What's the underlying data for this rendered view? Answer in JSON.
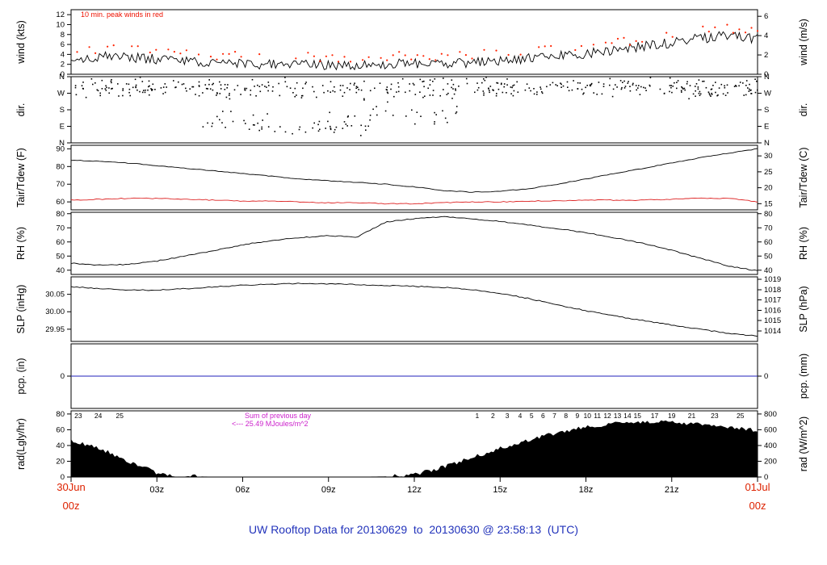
{
  "title": "UW Rooftop Data for 20130629  to  20130630 @ 23:58:13  (UTC)",
  "colors": {
    "accent_red": "#ee1100",
    "date_red": "#dd2200",
    "title_blue": "#2233bb",
    "magenta": "#cc22cc",
    "purple": "#aa22cc",
    "pcp_blue": "#2222bb"
  },
  "annotations": {
    "peak_note": "10 min. peak winds in red",
    "rad_sum_line1": "Sum of previous day",
    "rad_sum_line2": "<--- 25.49 MJoules/m^2"
  },
  "x_axis": {
    "start_date": "30Jun",
    "start_hour": "00z",
    "end_date": "01Jul",
    "end_hour": "00z",
    "range_hours": [
      0,
      24
    ],
    "ticks": [
      {
        "label": "03z",
        "h": 3
      },
      {
        "label": "06z",
        "h": 6
      },
      {
        "label": "09z",
        "h": 9
      },
      {
        "label": "12z",
        "h": 12
      },
      {
        "label": "15z",
        "h": 15
      },
      {
        "label": "18z",
        "h": 18
      },
      {
        "label": "21z",
        "h": 21
      }
    ]
  },
  "chart_data": {
    "type": "line",
    "x_unit": "hours UTC from 30Jun 00z to 01Jul 00z",
    "panels": [
      {
        "id": "wind",
        "ylabel_left": "wind (kts)",
        "ylabel_right": "wind (m/s)",
        "top": 12,
        "height": 80,
        "ylim": [
          0,
          13
        ],
        "yticks_left": [
          {
            "label": "0",
            "at": 0
          },
          {
            "label": "2",
            "at": 2
          },
          {
            "label": "4",
            "at": 4
          },
          {
            "label": "6",
            "at": 6
          },
          {
            "label": "8",
            "at": 8
          },
          {
            "label": "10",
            "at": 10
          },
          {
            "label": "12",
            "at": 12
          }
        ],
        "yticks_right": [
          {
            "label": "0",
            "at": 0
          },
          {
            "label": "2",
            "at": 3.89
          },
          {
            "label": "4",
            "at": 7.78
          },
          {
            "label": "6",
            "at": 11.67
          }
        ],
        "series": [
          {
            "name": "wind-speed",
            "style": "line",
            "color": "#000000",
            "noise": 1.0,
            "samples": 340,
            "min": 0.2,
            "base": [
              3.2,
              3.6,
              3.4,
              3.0,
              2.6,
              2.3,
              2.1,
              1.9,
              2.1,
              1.9,
              1.8,
              2.0,
              2.2,
              2.1,
              2.4,
              2.8,
              3.2,
              3.6,
              4.2,
              4.8,
              5.6,
              6.4,
              7.2,
              7.8,
              7.2
            ]
          },
          {
            "name": "wind-peaks",
            "style": "dots",
            "color": "#ff2200",
            "noise": 0.9,
            "samples": 340,
            "step": 3,
            "prob": 0.6,
            "min": 0.5,
            "base": [
              4.7,
              5.1,
              4.9,
              4.5,
              4.1,
              3.8,
              3.6,
              3.4,
              3.6,
              3.4,
              3.3,
              3.5,
              3.7,
              3.6,
              3.9,
              4.3,
              4.7,
              5.1,
              5.7,
              6.3,
              7.1,
              7.9,
              8.7,
              9.3,
              8.7
            ]
          }
        ]
      },
      {
        "id": "dir",
        "ylabel_left": "dir.",
        "ylabel_right": "dir.",
        "top": 95,
        "height": 82,
        "ylim": [
          0,
          360
        ],
        "yticks_left": [
          {
            "label": "N",
            "at": 0
          },
          {
            "label": "E",
            "at": 90
          },
          {
            "label": "S",
            "at": 180
          },
          {
            "label": "W",
            "at": 270
          },
          {
            "label": "N",
            "at": 360
          }
        ],
        "yticks_right": [
          {
            "label": "N",
            "at": 0
          },
          {
            "label": "E",
            "at": 90
          },
          {
            "label": "S",
            "at": 180
          },
          {
            "label": "W",
            "at": 270
          },
          {
            "label": "N",
            "at": 360
          }
        ],
        "series": [
          {
            "name": "wind-direction",
            "style": "scatter",
            "color": "#000000",
            "size": 1.6,
            "wrap": 360,
            "clusters": [
              {
                "x": [
                  0,
                  24
                ],
                "center": 300,
                "spread": 38,
                "n": 430
              },
              {
                "x": [
                  4.5,
                  10.5
                ],
                "center": 105,
                "spread": 45,
                "n": 60
              },
              {
                "x": [
                  10,
                  13.5
                ],
                "center": 170,
                "spread": 55,
                "n": 25
              }
            ]
          }
        ]
      },
      {
        "id": "temp",
        "ylabel_left": "Tair/Tdew (F)",
        "ylabel_right": "Tair/Tdew (C)",
        "top": 180,
        "height": 80,
        "ylim": [
          55.5,
          92
        ],
        "yticks_left": [
          {
            "label": "60",
            "at": 60
          },
          {
            "label": "70",
            "at": 70
          },
          {
            "label": "80",
            "at": 80
          },
          {
            "label": "90",
            "at": 90
          }
        ],
        "yticks_right": [
          {
            "label": "15",
            "at": 59
          },
          {
            "label": "20",
            "at": 68
          },
          {
            "label": "25",
            "at": 77
          },
          {
            "label": "30",
            "at": 86
          }
        ],
        "series": [
          {
            "name": "air-temperature",
            "style": "line",
            "color": "#000000",
            "noise": 0.2,
            "samples": 220,
            "base": [
              83.5,
              83.0,
              82.0,
              80.5,
              79.0,
              77.5,
              76.0,
              74.5,
              73.0,
              72.0,
              71.0,
              70.0,
              68.5,
              66.5,
              65.5,
              66.0,
              67.5,
              70.0,
              73.0,
              76.0,
              79.0,
              82.0,
              85.0,
              87.5,
              90.0
            ]
          },
          {
            "name": "dew-point",
            "style": "line",
            "color": "#dd2222",
            "noise": 0.25,
            "samples": 220,
            "base": [
              61.0,
              61.5,
              62.0,
              62.0,
              61.5,
              61.0,
              60.5,
              60.5,
              60.0,
              59.5,
              59.5,
              59.0,
              59.0,
              59.5,
              60.0,
              60.0,
              60.5,
              60.5,
              61.0,
              61.0,
              61.0,
              61.5,
              62.0,
              62.0,
              60.0
            ]
          }
        ]
      },
      {
        "id": "rh",
        "ylabel_left": "RH (%)",
        "ylabel_right": "RH (%)",
        "top": 263,
        "height": 77,
        "ylim": [
          37,
          81
        ],
        "yticks_left": [
          {
            "label": "40",
            "at": 40
          },
          {
            "label": "50",
            "at": 50
          },
          {
            "label": "60",
            "at": 60
          },
          {
            "label": "70",
            "at": 70
          },
          {
            "label": "80",
            "at": 80
          }
        ],
        "yticks_right": [
          {
            "label": "40",
            "at": 40
          },
          {
            "label": "50",
            "at": 50
          },
          {
            "label": "60",
            "at": 60
          },
          {
            "label": "70",
            "at": 70
          },
          {
            "label": "80",
            "at": 80
          }
        ],
        "series": [
          {
            "name": "relative-humidity",
            "style": "line",
            "color": "#000000",
            "noise": 0.35,
            "samples": 240,
            "base": [
              45,
              43.5,
              44,
              46.5,
              50,
              54,
              58,
              61,
              63,
              64.5,
              63.5,
              74,
              76.5,
              78,
              76.5,
              74.5,
              72,
              69.5,
              66.5,
              63,
              59,
              54,
              48.5,
              43,
              39.5
            ]
          }
        ]
      },
      {
        "id": "slp",
        "ylabel_left": "SLP (inHg)",
        "ylabel_right": "SLP (hPa)",
        "top": 343,
        "height": 80,
        "ylim": [
          29.915,
          30.1
        ],
        "yticks_left": [
          {
            "label": "29.95",
            "at": 29.95
          },
          {
            "label": "30.00",
            "at": 30.0
          },
          {
            "label": "30.05",
            "at": 30.05
          }
        ],
        "yticks_right": [
          {
            "label": "1014",
            "at": 29.945
          },
          {
            "label": "1015",
            "at": 29.975
          },
          {
            "label": "1016",
            "at": 30.004
          },
          {
            "label": "1017",
            "at": 30.034
          },
          {
            "label": "1018",
            "at": 30.063
          },
          {
            "label": "1019",
            "at": 30.093
          }
        ],
        "series": [
          {
            "name": "sea-level-pressure",
            "style": "line",
            "color": "#000000",
            "noise": 0.0015,
            "samples": 240,
            "base": [
              30.072,
              30.066,
              30.062,
              30.062,
              30.066,
              30.071,
              30.076,
              30.079,
              30.081,
              30.08,
              30.078,
              30.075,
              30.073,
              30.07,
              30.064,
              30.053,
              30.038,
              30.02,
              30.003,
              29.988,
              29.975,
              29.962,
              29.95,
              29.938,
              29.93
            ]
          }
        ]
      },
      {
        "id": "pcp",
        "ylabel_left": "pcp. (in)",
        "ylabel_right": "pcp. (mm)",
        "top": 426,
        "height": 80,
        "ylim": [
          -1,
          1
        ],
        "yticks_left": [
          {
            "label": "0",
            "at": 0
          }
        ],
        "yticks_right": [
          {
            "label": "0",
            "at": 0
          }
        ],
        "series": [
          {
            "name": "precipitation",
            "style": "line",
            "color": "#2222bb",
            "noise": 0,
            "samples": 2,
            "base": [
              0,
              0,
              0,
              0,
              0,
              0,
              0,
              0,
              0,
              0,
              0,
              0,
              0,
              0,
              0,
              0,
              0,
              0,
              0,
              0,
              0,
              0,
              0,
              0,
              0
            ]
          }
        ]
      },
      {
        "id": "rad",
        "ylabel_left": "rad(Lgly/hr)",
        "ylabel_right": "rad (W/m^2)",
        "top": 509,
        "height": 82,
        "ylim": [
          0,
          84
        ],
        "yticks_left": [
          {
            "label": "0",
            "at": 0
          },
          {
            "label": "20",
            "at": 20
          },
          {
            "label": "40",
            "at": 40
          },
          {
            "label": "60",
            "at": 60
          },
          {
            "label": "80",
            "at": 80
          }
        ],
        "yticks_right": [
          {
            "label": "0",
            "at": 0
          },
          {
            "label": "200",
            "at": 20
          },
          {
            "label": "400",
            "at": 40
          },
          {
            "label": "600",
            "at": 60
          },
          {
            "label": "800",
            "at": 80
          }
        ],
        "series": [
          {
            "name": "solar-radiation",
            "style": "area",
            "color": "#000000",
            "noise": 2.5,
            "samples": 300,
            "min": 0,
            "base": [
              46,
              36,
              20,
              5,
              1,
              0,
              0,
              0,
              0,
              0,
              0,
              0.5,
              3,
              12,
              24,
              36,
              47,
              56,
              63,
              68,
              70,
              69,
              67,
              63,
              59
            ]
          }
        ],
        "top_labels": {
          "color": "#aa22cc",
          "items": [
            {
              "label": "23",
              "h": 0.25
            },
            {
              "label": "24",
              "h": 0.95
            },
            {
              "label": "25",
              "h": 1.7
            },
            {
              "label": "1",
              "h": 14.2
            },
            {
              "label": "2",
              "h": 14.75
            },
            {
              "label": "3",
              "h": 15.25
            },
            {
              "label": "4",
              "h": 15.7
            },
            {
              "label": "5",
              "h": 16.1
            },
            {
              "label": "6",
              "h": 16.5
            },
            {
              "label": "7",
              "h": 16.9
            },
            {
              "label": "8",
              "h": 17.3
            },
            {
              "label": "9",
              "h": 17.7
            },
            {
              "label": "10",
              "h": 18.05
            },
            {
              "label": "11",
              "h": 18.4
            },
            {
              "label": "12",
              "h": 18.75
            },
            {
              "label": "13",
              "h": 19.1
            },
            {
              "label": "14",
              "h": 19.45
            },
            {
              "label": "15",
              "h": 19.8
            },
            {
              "label": "17",
              "h": 20.4
            },
            {
              "label": "19",
              "h": 21.0
            },
            {
              "label": "21",
              "h": 21.7
            },
            {
              "label": "23",
              "h": 22.5
            },
            {
              "label": "25",
              "h": 23.4
            }
          ]
        }
      }
    ]
  }
}
